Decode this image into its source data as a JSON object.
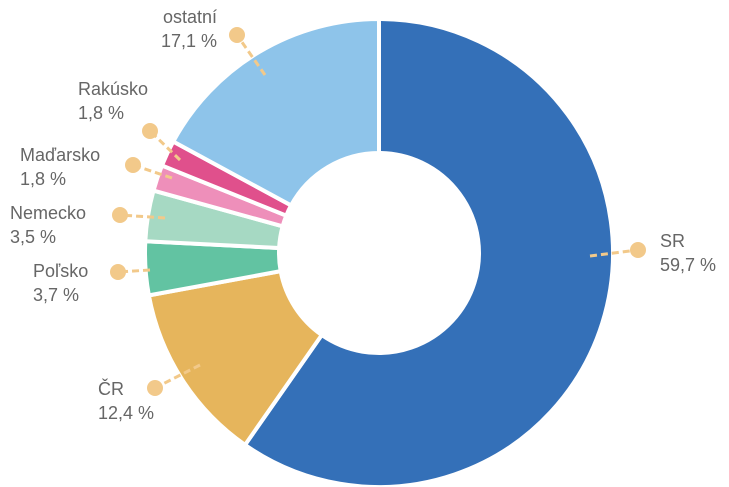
{
  "chart_data": {
    "type": "donut",
    "categories": [
      "SR",
      "ČR",
      "Poľsko",
      "Nemecko",
      "Maďarsko",
      "Rakúsko",
      "ostatní"
    ],
    "values": [
      59.7,
      12.4,
      3.7,
      3.5,
      1.8,
      1.8,
      17.1
    ],
    "value_labels": [
      "59,7 %",
      "12,4 %",
      "3,7 %",
      "3,5 %",
      "1,8 %",
      "1,8 %",
      "17,1 %"
    ],
    "colors": [
      "#3470b8",
      "#e6b55c",
      "#62c3a2",
      "#a6d9c3",
      "#ee8fba",
      "#e0508c",
      "#8ec4ea"
    ]
  }
}
